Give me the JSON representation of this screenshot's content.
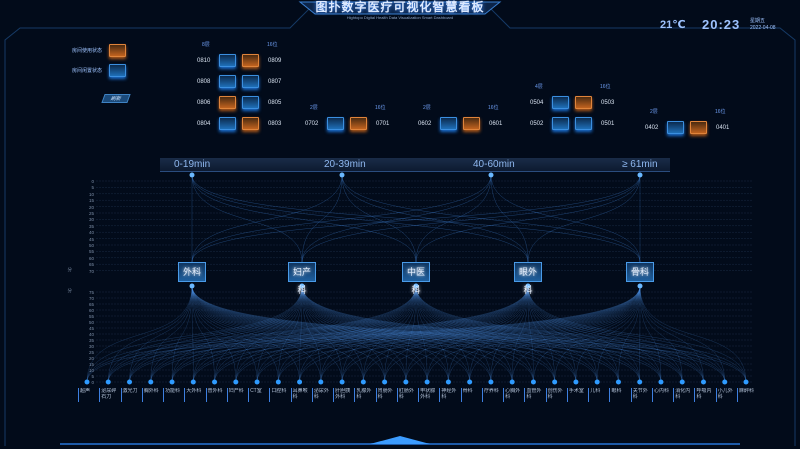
{
  "header": {
    "title": "图扑数字医疗可视化智慧看板",
    "subtitle": "Hightopo Digital Health Data Visualization Smart Dashboard",
    "temperature": "21℃",
    "time": "20:23",
    "weekday": "星期五",
    "date": "2022-04-08"
  },
  "legend": {
    "in_use": "房间使用状态",
    "idle": "房间闲置状态",
    "refresh_button": "刷新"
  },
  "colors": {
    "in_use": "#e0843b",
    "idle": "#3b8fe0",
    "accent": "#4a9be8",
    "background": "#020b1a"
  },
  "bed_groups": [
    {
      "floor": "8层",
      "beds": "16位",
      "rows": [
        {
          "left": "0810",
          "right": "0809",
          "status": [
            "idle",
            "in_use"
          ]
        },
        {
          "left": "0808",
          "right": "0807",
          "status": [
            "idle",
            "idle"
          ]
        },
        {
          "left": "0806",
          "right": "0805",
          "status": [
            "in_use",
            "idle"
          ]
        },
        {
          "left": "0804",
          "right": "0803",
          "status": [
            "idle",
            "in_use"
          ]
        }
      ]
    },
    {
      "floor": "2层",
      "beds": "16位",
      "rows": [
        {
          "left": "0702",
          "right": "0701",
          "status": [
            "idle",
            "in_use"
          ]
        }
      ]
    },
    {
      "floor": "2层",
      "beds": "16位",
      "rows": [
        {
          "left": "0602",
          "right": "0601",
          "status": [
            "idle",
            "in_use"
          ]
        }
      ]
    },
    {
      "floor": "4层",
      "beds": "16位",
      "rows": [
        {
          "left": "0504",
          "right": "0503",
          "status": [
            "idle",
            "in_use"
          ]
        },
        {
          "left": "0502",
          "right": "0501",
          "status": [
            "idle",
            "idle"
          ]
        }
      ]
    },
    {
      "floor": "2层",
      "beds": "16位",
      "rows": [
        {
          "left": "0402",
          "right": "0401",
          "status": [
            "idle",
            "in_use"
          ]
        }
      ]
    }
  ],
  "flow": {
    "time_ranges": [
      "0-19min",
      "20-39min",
      "40-60min",
      "≥ 61min"
    ],
    "departments": [
      "外科",
      "妇产科",
      "中医科",
      "眼外科",
      "骨科"
    ],
    "upper_axis_label": "分",
    "lower_axis_label": "分",
    "upper_ticks": [
      "0",
      "5",
      "10",
      "15",
      "20",
      "25",
      "30",
      "35",
      "40",
      "45",
      "50",
      "55",
      "60",
      "65",
      "70"
    ],
    "lower_ticks": [
      "75",
      "70",
      "65",
      "60",
      "55",
      "50",
      "45",
      "40",
      "35",
      "30",
      "25",
      "20",
      "15",
      "10",
      "5",
      "0"
    ],
    "procedures": [
      "超声",
      "泌尿碎石刀",
      "激光刀",
      "胸外科",
      "功能科",
      "大外科",
      "普外科",
      "妇产科",
      "CT室",
      "口腔科",
      "耳鼻喉科",
      "泌尿外科",
      "肝胆胰外科",
      "乳腺外科",
      "胃肠外科",
      "肛肠外科",
      "甲状腺外科",
      "神经外科",
      "骨科",
      "疗养科",
      "心胸外科",
      "血管外科",
      "创伤外科",
      "手术室",
      "儿科",
      "眼科",
      "关节外科",
      "心内科",
      "消化内科",
      "呼吸内科",
      "小儿外科",
      "麻醉科"
    ]
  }
}
